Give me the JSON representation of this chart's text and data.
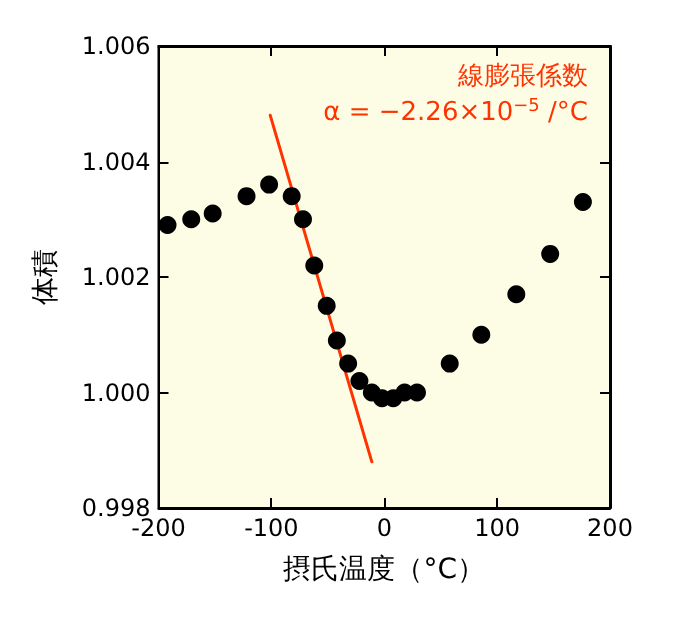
{
  "chart_data": {
    "type": "scatter",
    "xlabel": "摂氏温度（°C）",
    "ylabel": "体積",
    "xlim": [
      -200,
      200
    ],
    "xticks": [
      -200,
      -100,
      0,
      100,
      200
    ],
    "ylim": [
      0.998,
      1.006
    ],
    "yticks": [
      {
        "value": 0.998,
        "label": "0.998"
      },
      {
        "value": 1.0,
        "label": "1.000"
      },
      {
        "value": 1.002,
        "label": "1.002"
      },
      {
        "value": 1.004,
        "label": "1.004"
      },
      {
        "value": 1.006,
        "label": "1.006"
      }
    ],
    "grid": false,
    "marker": "circle",
    "series": [
      {
        "color": "#000000",
        "x": [
          -192,
          -171,
          -152,
          -122,
          -102,
          -82,
          -72,
          -62,
          -51,
          -42,
          -32,
          -22,
          -11,
          -2,
          8,
          18,
          29,
          58,
          86,
          117,
          147,
          176
        ],
        "values": [
          1.0029,
          1.003,
          1.0031,
          1.0034,
          1.0036,
          1.0034,
          1.003,
          1.0022,
          1.0015,
          1.0009,
          1.0005,
          1.0002,
          1.0,
          0.9999,
          0.9999,
          1.0,
          1.0,
          1.0005,
          1.001,
          1.0017,
          1.0024,
          1.0033
        ]
      },
      {
        "type": "line",
        "color": "#ff3300",
        "marker": "none",
        "line_style": "solid",
        "x": [
          -101,
          -11
        ],
        "values": [
          1.0048,
          0.9988
        ]
      }
    ],
    "annotations": [
      "線膨張係数",
      "α = −2.26×10$^{−5}$ /°C"
    ]
  }
}
